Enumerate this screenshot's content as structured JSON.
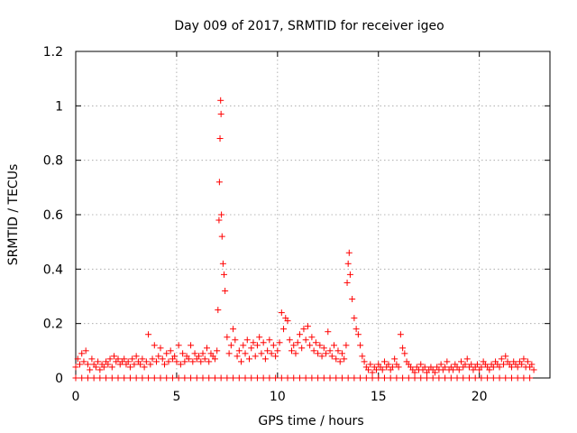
{
  "chart_data": {
    "type": "scatter",
    "title": "Day 009 of 2017, SRMTID for receiver igeo",
    "xlabel": "GPS time / hours",
    "ylabel": "SRMTID / TECUs",
    "xlim": [
      0,
      23.5
    ],
    "ylim": [
      0,
      1.2
    ],
    "grid": true,
    "marker": "+",
    "series_color": "#ff0000",
    "xticks": [
      0,
      5,
      10,
      15,
      20
    ],
    "xtick_labels": [
      "0",
      "5",
      "10",
      "15",
      "20"
    ],
    "yticks": [
      0,
      0.2,
      0.4,
      0.6,
      0.8,
      1.0,
      1.2
    ],
    "ytick_labels": [
      "0",
      "0.2",
      "0.4",
      "0.6",
      "0.8",
      "1",
      "1.2"
    ],
    "series": [
      {
        "name": "SRMTID",
        "baseline_zero_x": [
          0.0,
          0.3,
          0.6,
          0.9,
          1.2,
          1.5,
          1.8,
          2.1,
          2.4,
          2.7,
          3.0,
          3.3,
          3.6,
          3.9,
          4.2,
          4.5,
          4.8,
          5.1,
          5.4,
          5.7,
          6.0,
          6.3,
          6.6,
          6.9,
          7.2,
          7.5,
          7.8,
          8.1,
          8.4,
          8.7,
          9.0,
          9.3,
          9.6,
          9.9,
          10.2,
          10.5,
          10.8,
          11.1,
          11.4,
          11.7,
          12.0,
          12.3,
          12.6,
          12.9,
          13.2,
          13.5,
          13.8,
          14.1,
          14.4,
          14.7,
          15.0,
          15.3,
          15.6,
          15.9,
          16.2,
          16.5,
          16.8,
          17.1,
          17.4,
          17.7,
          18.0,
          18.3,
          18.6,
          18.9,
          19.2,
          19.5,
          19.8,
          20.1,
          20.4,
          20.7,
          21.0,
          21.3,
          21.6,
          21.9,
          22.2,
          22.5
        ],
        "x": [
          0.0,
          0.1,
          0.2,
          0.3,
          0.4,
          0.5,
          0.6,
          0.7,
          0.8,
          0.9,
          1.0,
          1.1,
          1.2,
          1.3,
          1.4,
          1.5,
          1.6,
          1.7,
          1.8,
          1.9,
          2.0,
          2.1,
          2.2,
          2.3,
          2.4,
          2.5,
          2.6,
          2.7,
          2.8,
          2.9,
          3.0,
          3.1,
          3.2,
          3.3,
          3.4,
          3.5,
          3.6,
          3.7,
          3.8,
          3.9,
          4.0,
          4.1,
          4.2,
          4.3,
          4.4,
          4.5,
          4.6,
          4.7,
          4.8,
          4.9,
          5.0,
          5.1,
          5.2,
          5.3,
          5.4,
          5.5,
          5.6,
          5.7,
          5.8,
          5.9,
          6.0,
          6.1,
          6.2,
          6.3,
          6.4,
          6.5,
          6.6,
          6.7,
          6.8,
          6.9,
          7.0,
          7.05,
          7.1,
          7.12,
          7.15,
          7.18,
          7.2,
          7.22,
          7.25,
          7.3,
          7.35,
          7.4,
          7.5,
          7.6,
          7.7,
          7.8,
          7.9,
          8.0,
          8.1,
          8.2,
          8.3,
          8.4,
          8.5,
          8.6,
          8.7,
          8.8,
          8.9,
          9.0,
          9.1,
          9.2,
          9.3,
          9.4,
          9.5,
          9.6,
          9.7,
          9.8,
          9.9,
          10.0,
          10.1,
          10.2,
          10.3,
          10.4,
          10.5,
          10.6,
          10.7,
          10.8,
          10.9,
          11.0,
          11.1,
          11.2,
          11.3,
          11.4,
          11.5,
          11.6,
          11.7,
          11.8,
          11.9,
          12.0,
          12.1,
          12.2,
          12.3,
          12.4,
          12.5,
          12.6,
          12.7,
          12.8,
          12.9,
          13.0,
          13.1,
          13.2,
          13.3,
          13.4,
          13.45,
          13.5,
          13.55,
          13.6,
          13.7,
          13.8,
          13.9,
          14.0,
          14.1,
          14.2,
          14.3,
          14.4,
          14.5,
          14.6,
          14.7,
          14.8,
          14.9,
          15.0,
          15.1,
          15.2,
          15.3,
          15.4,
          15.5,
          15.6,
          15.7,
          15.8,
          15.9,
          16.0,
          16.1,
          16.2,
          16.3,
          16.4,
          16.5,
          16.6,
          16.7,
          16.8,
          16.9,
          17.0,
          17.1,
          17.2,
          17.3,
          17.4,
          17.5,
          17.6,
          17.7,
          17.8,
          17.9,
          18.0,
          18.1,
          18.2,
          18.3,
          18.4,
          18.5,
          18.6,
          18.7,
          18.8,
          18.9,
          19.0,
          19.1,
          19.2,
          19.3,
          19.4,
          19.5,
          19.6,
          19.7,
          19.8,
          19.9,
          20.0,
          20.1,
          20.2,
          20.3,
          20.4,
          20.5,
          20.6,
          20.7,
          20.8,
          20.9,
          21.0,
          21.1,
          21.2,
          21.3,
          21.4,
          21.5,
          21.6,
          21.7,
          21.8,
          21.9,
          22.0,
          22.1,
          22.2,
          22.3,
          22.4,
          22.5,
          22.6,
          22.7
        ],
        "y": [
          0.04,
          0.07,
          0.05,
          0.09,
          0.06,
          0.1,
          0.05,
          0.03,
          0.07,
          0.05,
          0.04,
          0.06,
          0.03,
          0.05,
          0.04,
          0.06,
          0.05,
          0.07,
          0.04,
          0.08,
          0.06,
          0.07,
          0.05,
          0.06,
          0.07,
          0.05,
          0.06,
          0.04,
          0.07,
          0.05,
          0.08,
          0.06,
          0.05,
          0.07,
          0.04,
          0.06,
          0.16,
          0.05,
          0.07,
          0.12,
          0.06,
          0.08,
          0.11,
          0.07,
          0.05,
          0.09,
          0.06,
          0.1,
          0.07,
          0.08,
          0.06,
          0.12,
          0.05,
          0.09,
          0.06,
          0.08,
          0.07,
          0.12,
          0.06,
          0.09,
          0.07,
          0.08,
          0.06,
          0.09,
          0.07,
          0.11,
          0.06,
          0.09,
          0.08,
          0.07,
          0.1,
          0.25,
          0.58,
          0.72,
          0.88,
          1.02,
          0.97,
          0.6,
          0.52,
          0.42,
          0.38,
          0.32,
          0.15,
          0.09,
          0.12,
          0.18,
          0.14,
          0.08,
          0.1,
          0.06,
          0.12,
          0.09,
          0.14,
          0.07,
          0.11,
          0.13,
          0.08,
          0.12,
          0.15,
          0.09,
          0.13,
          0.07,
          0.1,
          0.14,
          0.09,
          0.12,
          0.08,
          0.1,
          0.13,
          0.24,
          0.18,
          0.22,
          0.21,
          0.14,
          0.1,
          0.12,
          0.09,
          0.13,
          0.16,
          0.11,
          0.18,
          0.14,
          0.19,
          0.12,
          0.15,
          0.1,
          0.13,
          0.09,
          0.12,
          0.08,
          0.11,
          0.09,
          0.17,
          0.1,
          0.08,
          0.12,
          0.07,
          0.1,
          0.06,
          0.09,
          0.07,
          0.12,
          0.35,
          0.42,
          0.46,
          0.38,
          0.29,
          0.22,
          0.18,
          0.16,
          0.12,
          0.08,
          0.06,
          0.04,
          0.03,
          0.05,
          0.02,
          0.04,
          0.03,
          0.05,
          0.04,
          0.03,
          0.06,
          0.04,
          0.05,
          0.03,
          0.04,
          0.07,
          0.05,
          0.04,
          0.16,
          0.11,
          0.09,
          0.06,
          0.05,
          0.04,
          0.03,
          0.02,
          0.04,
          0.03,
          0.05,
          0.03,
          0.04,
          0.02,
          0.03,
          0.04,
          0.03,
          0.02,
          0.04,
          0.03,
          0.05,
          0.03,
          0.04,
          0.06,
          0.03,
          0.04,
          0.03,
          0.05,
          0.04,
          0.03,
          0.06,
          0.04,
          0.05,
          0.07,
          0.04,
          0.05,
          0.03,
          0.04,
          0.05,
          0.03,
          0.04,
          0.06,
          0.05,
          0.04,
          0.03,
          0.05,
          0.04,
          0.06,
          0.05,
          0.04,
          0.07,
          0.05,
          0.08,
          0.06,
          0.05,
          0.04,
          0.06,
          0.05,
          0.04,
          0.06,
          0.05,
          0.07,
          0.04,
          0.06,
          0.04,
          0.05,
          0.03
        ]
      }
    ]
  }
}
